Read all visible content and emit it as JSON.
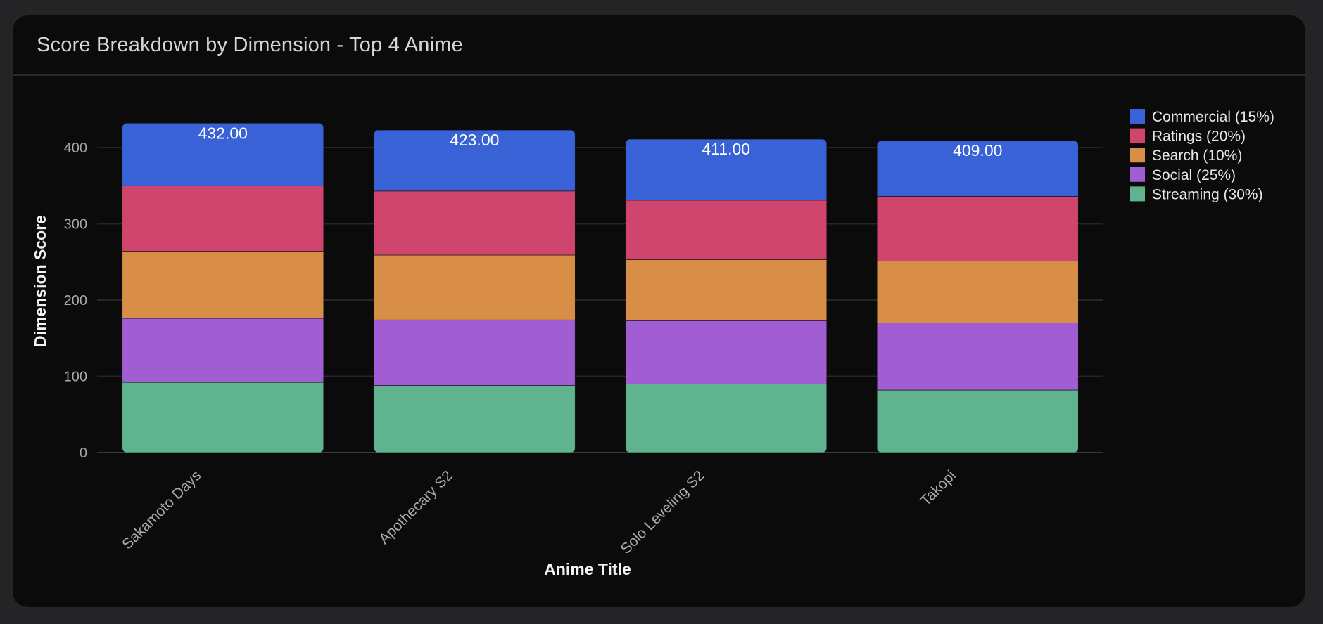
{
  "header": {
    "title": "Score Breakdown by Dimension - Top 4 Anime"
  },
  "chart_data": {
    "type": "bar",
    "stacked": true,
    "xlabel": "Anime Title",
    "ylabel": "Dimension Score",
    "ylim": [
      0,
      440
    ],
    "yticks": [
      0,
      100,
      200,
      300,
      400
    ],
    "grid": true,
    "legend_position": "top-right",
    "categories": [
      "Sakamoto Days",
      "Apothecary S2",
      "Solo Leveling S2",
      "Takopi"
    ],
    "totals": [
      "432.00",
      "423.00",
      "411.00",
      "409.00"
    ],
    "series": [
      {
        "name": "Streaming (30%)",
        "color": "#5fb48f",
        "values": [
          92,
          88,
          90,
          82
        ]
      },
      {
        "name": "Social (25%)",
        "color": "#a15dd2",
        "values": [
          84,
          86,
          83,
          88
        ]
      },
      {
        "name": "Search (10%)",
        "color": "#d98e47",
        "values": [
          88,
          85,
          80,
          81
        ]
      },
      {
        "name": "Ratings (20%)",
        "color": "#d0456e",
        "values": [
          86,
          84,
          78,
          85
        ]
      },
      {
        "name": "Commercial (15%)",
        "color": "#3862d6",
        "values": [
          82,
          80,
          80,
          73
        ]
      }
    ],
    "legend_order": [
      "Commercial (15%)",
      "Ratings (20%)",
      "Search (10%)",
      "Social (25%)",
      "Streaming (30%)"
    ]
  }
}
